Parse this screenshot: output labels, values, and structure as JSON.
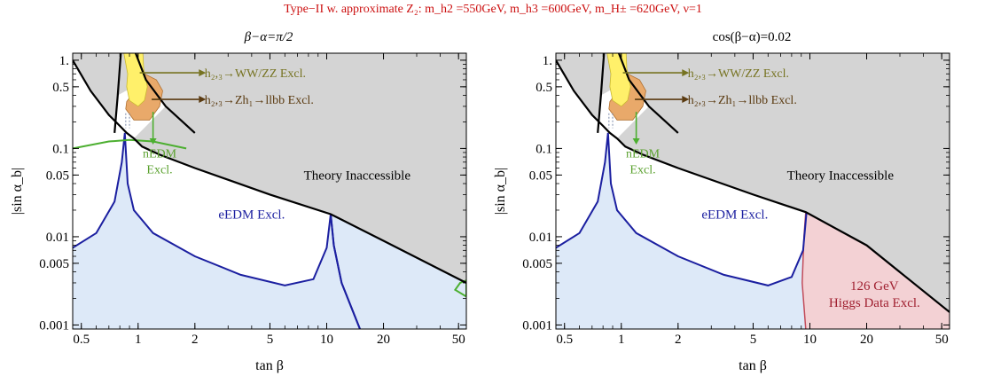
{
  "figure_title": "Type−II w. approximate Z₂: m_h2 =550GeV, m_h3 =600GeV, m_H± =620GeV, ν=1",
  "colors": {
    "title_red": "#cc1111",
    "theory_gray": "#d4d4d4",
    "eedm_fill": "#dde9f8",
    "eedm_line": "#1b1fa0",
    "nedm_line": "#4caf30",
    "nedm_text": "#5aa12e",
    "ww_fill": "#fff06a",
    "zh_fill": "#e9a96a",
    "higgs_fill": "#f3d1d4",
    "higgs_line": "#c24c5a",
    "ww_arrow": "#767321",
    "zh_arrow": "#5a3a10",
    "frame": "#000000"
  },
  "chart_data": [
    {
      "type": "contour-exclusion",
      "title": "β−α=π/2",
      "xlabel": "tan β",
      "ylabel": "|sin α_b|",
      "xscale": "log",
      "yscale": "log",
      "xlim": [
        0.45,
        55
      ],
      "ylim": [
        0.0009,
        1.2
      ],
      "x_ticks": [
        0.5,
        1,
        2,
        5,
        10,
        20,
        50
      ],
      "x_tick_labels": [
        "0.5",
        "1",
        "2",
        "5",
        "10",
        "20",
        "50"
      ],
      "y_ticks": [
        1,
        0.5,
        0.1,
        0.05,
        0.01,
        0.005,
        0.001
      ],
      "y_tick_labels": [
        "1.",
        "0.5",
        "0.1",
        "0.05",
        "0.01",
        "0.005",
        "0.001"
      ],
      "theory_boundary": [
        [
          0.45,
          1.0
        ],
        [
          0.56,
          0.45
        ],
        [
          0.7,
          0.24
        ],
        [
          0.8,
          0.18
        ],
        [
          0.87,
          0.15
        ],
        [
          0.95,
          0.13
        ],
        [
          1.05,
          0.105
        ],
        [
          1.3,
          0.085
        ],
        [
          2.0,
          0.06
        ],
        [
          5.0,
          0.03
        ],
        [
          10.5,
          0.018
        ],
        [
          20.0,
          0.009
        ],
        [
          55.0,
          0.003
        ]
      ],
      "theory_left_branch": [
        [
          0.81,
          1.2
        ],
        [
          0.78,
          0.4
        ],
        [
          0.75,
          0.15
        ]
      ],
      "theory_right_branch": [
        [
          0.97,
          1.2
        ],
        [
          1.1,
          0.6
        ],
        [
          1.4,
          0.3
        ],
        [
          2.0,
          0.15
        ]
      ],
      "eedm_boundary": [
        [
          0.45,
          0.0075
        ],
        [
          0.6,
          0.011
        ],
        [
          0.75,
          0.025
        ],
        [
          0.82,
          0.07
        ],
        [
          0.85,
          0.15
        ],
        [
          0.88,
          0.04
        ],
        [
          0.95,
          0.02
        ],
        [
          1.2,
          0.011
        ],
        [
          2.0,
          0.006
        ],
        [
          3.5,
          0.0037
        ],
        [
          6.0,
          0.0028
        ],
        [
          8.5,
          0.0033
        ],
        [
          10.0,
          0.0075
        ],
        [
          10.5,
          0.018
        ],
        [
          10.9,
          0.008
        ],
        [
          12.0,
          0.003
        ],
        [
          15.0,
          0.0009
        ]
      ],
      "nedm_curve": [
        [
          0.45,
          0.1
        ],
        [
          0.7,
          0.12
        ],
        [
          0.9,
          0.125
        ],
        [
          1.2,
          0.12
        ],
        [
          1.8,
          0.1
        ]
      ],
      "nedm_corner": [
        [
          48.0,
          0.0025
        ],
        [
          55.0,
          0.0021
        ],
        [
          55.0,
          0.0032
        ],
        [
          51.0,
          0.003
        ]
      ],
      "ww_region": [
        [
          0.84,
          1.2
        ],
        [
          0.88,
          0.7
        ],
        [
          0.87,
          0.5
        ],
        [
          0.9,
          0.35
        ],
        [
          1.0,
          0.3
        ],
        [
          1.08,
          0.35
        ],
        [
          1.12,
          0.5
        ],
        [
          1.07,
          0.8
        ],
        [
          1.06,
          1.2
        ]
      ],
      "zh_region": [
        [
          0.87,
          0.34
        ],
        [
          0.86,
          0.28
        ],
        [
          0.95,
          0.21
        ],
        [
          1.15,
          0.21
        ],
        [
          1.3,
          0.3
        ],
        [
          1.35,
          0.45
        ],
        [
          1.25,
          0.6
        ],
        [
          1.08,
          0.7
        ],
        [
          1.0,
          0.5
        ]
      ],
      "ww_label": "h₂,₃→WW/ZZ Excl.",
      "zh_label": "h₂,₃→Zh₁→llbb Excl.",
      "nedm_label_line1": "nEDM",
      "nedm_label_line2": "Excl.",
      "theory_label": "Theory Inaccessible",
      "eedm_label": "eEDM Excl.",
      "higgs_label_line1": "",
      "higgs_label_line2": ""
    },
    {
      "type": "contour-exclusion",
      "title": "cos(β−α)=0.02",
      "xlabel": "tan β",
      "ylabel": "|sin α_b|",
      "xscale": "log",
      "yscale": "log",
      "xlim": [
        0.45,
        55
      ],
      "ylim": [
        0.0009,
        1.2
      ],
      "x_ticks": [
        0.5,
        1,
        2,
        5,
        10,
        20,
        50
      ],
      "x_tick_labels": [
        "0.5",
        "1",
        "2",
        "5",
        "10",
        "20",
        "50"
      ],
      "y_ticks": [
        1,
        0.5,
        0.1,
        0.05,
        0.01,
        0.005,
        0.001
      ],
      "y_tick_labels": [
        "1.",
        "0.5",
        "0.1",
        "0.05",
        "0.01",
        "0.005",
        "0.001"
      ],
      "theory_boundary": [
        [
          0.45,
          1.0
        ],
        [
          0.56,
          0.45
        ],
        [
          0.7,
          0.24
        ],
        [
          0.8,
          0.18
        ],
        [
          0.87,
          0.15
        ],
        [
          0.95,
          0.13
        ],
        [
          1.05,
          0.105
        ],
        [
          1.3,
          0.085
        ],
        [
          2.0,
          0.06
        ],
        [
          5.0,
          0.03
        ],
        [
          9.5,
          0.019
        ],
        [
          20.0,
          0.008
        ],
        [
          55.0,
          0.0014
        ]
      ],
      "theory_left_branch": [
        [
          0.81,
          1.2
        ],
        [
          0.78,
          0.4
        ],
        [
          0.75,
          0.15
        ]
      ],
      "theory_right_branch": [
        [
          0.97,
          1.2
        ],
        [
          1.1,
          0.6
        ],
        [
          1.4,
          0.3
        ],
        [
          2.0,
          0.15
        ]
      ],
      "eedm_boundary": [
        [
          0.45,
          0.0075
        ],
        [
          0.6,
          0.011
        ],
        [
          0.75,
          0.025
        ],
        [
          0.82,
          0.07
        ],
        [
          0.85,
          0.15
        ],
        [
          0.88,
          0.04
        ],
        [
          0.95,
          0.02
        ],
        [
          1.2,
          0.011
        ],
        [
          2.0,
          0.006
        ],
        [
          3.5,
          0.0037
        ],
        [
          6.0,
          0.0028
        ],
        [
          8.0,
          0.0035
        ],
        [
          9.2,
          0.007
        ],
        [
          9.6,
          0.019
        ]
      ],
      "higgs_region": [
        [
          9.5,
          0.019
        ],
        [
          20.0,
          0.008
        ],
        [
          55.0,
          0.0014
        ],
        [
          55.0,
          0.0009
        ],
        [
          9.5,
          0.0009
        ],
        [
          9.1,
          0.003
        ],
        [
          9.3,
          0.01
        ]
      ],
      "nedm_curve": [],
      "nedm_corner": [],
      "ww_region": [
        [
          0.84,
          1.2
        ],
        [
          0.88,
          0.7
        ],
        [
          0.87,
          0.5
        ],
        [
          0.9,
          0.35
        ],
        [
          1.0,
          0.3
        ],
        [
          1.08,
          0.35
        ],
        [
          1.12,
          0.5
        ],
        [
          1.07,
          0.8
        ],
        [
          1.06,
          1.2
        ]
      ],
      "zh_region": [
        [
          0.87,
          0.34
        ],
        [
          0.86,
          0.28
        ],
        [
          0.95,
          0.21
        ],
        [
          1.15,
          0.21
        ],
        [
          1.3,
          0.3
        ],
        [
          1.35,
          0.45
        ],
        [
          1.25,
          0.6
        ],
        [
          1.08,
          0.7
        ],
        [
          1.0,
          0.5
        ]
      ],
      "ww_label": "h₂,₃→WW/ZZ Excl.",
      "zh_label": "h₂,₃→Zh₁→llbb Excl.",
      "nedm_label_line1": "nEDM",
      "nedm_label_line2": "Excl.",
      "theory_label": "Theory Inaccessible",
      "eedm_label": "eEDM Excl.",
      "higgs_label_line1": "126 GeV",
      "higgs_label_line2": "Higgs Data Excl."
    }
  ]
}
